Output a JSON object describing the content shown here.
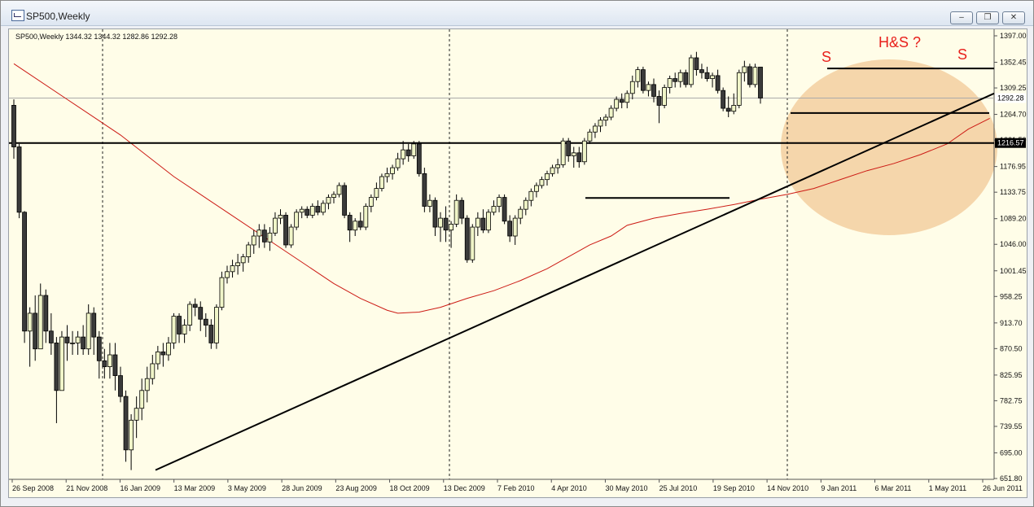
{
  "window": {
    "title": "SP500,Weekly",
    "buttons": [
      "minimize",
      "restore",
      "close"
    ]
  },
  "chart_data": {
    "type": "candlestick",
    "symbol_info": "SP500,Weekly   1344.32 1344.32 1282.86 1292.28",
    "y_ticks": [
      "1397.00",
      "1352.45",
      "1309.25",
      "1264.70",
      "1221.50",
      "1176.95",
      "1133.75",
      "1089.20",
      "1046.00",
      "1001.45",
      "958.25",
      "913.70",
      "870.50",
      "825.95",
      "782.75",
      "739.55",
      "695.00",
      "651.80"
    ],
    "x_ticks": [
      "26 Sep 2008",
      "21 Nov 2008",
      "16 Jan 2009",
      "13 Mar 2009",
      "3 May 2009",
      "28 Jun 2009",
      "23 Aug 2009",
      "18 Oct 2009",
      "13 Dec 2009",
      "7 Feb 2010",
      "4 Apr 2010",
      "30 May 2010",
      "25 Jul 2010",
      "19 Sep 2010",
      "14 Nov 2010",
      "9 Jan 2011",
      "6 Mar 2011",
      "1 May 2011",
      "26 Jun 2011"
    ],
    "ylim": [
      651.8,
      1397.0
    ],
    "price_badges": [
      {
        "text": "1292.28",
        "value": 1292.28
      },
      {
        "text": "1216.57",
        "value": 1216.57
      }
    ],
    "annotations": [
      {
        "text": "S",
        "color": "#e8201c"
      },
      {
        "text": "H&S ?",
        "color": "#e8201c"
      },
      {
        "text": "S",
        "color": "#e8201c"
      }
    ],
    "moving_average": [
      [
        0,
        1350
      ],
      [
        10,
        1290
      ],
      [
        20,
        1230
      ],
      [
        30,
        1160
      ],
      [
        40,
        1100
      ],
      [
        50,
        1040
      ],
      [
        55,
        1010
      ],
      [
        60,
        980
      ],
      [
        65,
        955
      ],
      [
        70,
        935
      ],
      [
        72,
        930
      ],
      [
        76,
        932
      ],
      [
        80,
        940
      ],
      [
        85,
        955
      ],
      [
        90,
        968
      ],
      [
        95,
        985
      ],
      [
        100,
        1005
      ],
      [
        104,
        1025
      ],
      [
        108,
        1045
      ],
      [
        112,
        1060
      ],
      [
        115,
        1078
      ],
      [
        120,
        1090
      ],
      [
        125,
        1098
      ],
      [
        130,
        1105
      ],
      [
        135,
        1113
      ],
      [
        140,
        1122
      ],
      [
        145,
        1130
      ],
      [
        150,
        1140
      ],
      [
        155,
        1155
      ],
      [
        160,
        1170
      ],
      [
        165,
        1182
      ],
      [
        170,
        1197
      ],
      [
        175,
        1215
      ],
      [
        179,
        1240
      ],
      [
        183,
        1258
      ]
    ],
    "candles": [
      {
        "o": 1280,
        "h": 1290,
        "l": 1190,
        "c": 1210
      },
      {
        "o": 1210,
        "h": 1215,
        "l": 1090,
        "c": 1100
      },
      {
        "o": 1100,
        "h": 1102,
        "l": 880,
        "c": 900
      },
      {
        "o": 900,
        "h": 940,
        "l": 840,
        "c": 930
      },
      {
        "o": 930,
        "h": 960,
        "l": 850,
        "c": 870
      },
      {
        "o": 870,
        "h": 980,
        "l": 870,
        "c": 960
      },
      {
        "o": 960,
        "h": 970,
        "l": 880,
        "c": 900
      },
      {
        "o": 900,
        "h": 930,
        "l": 860,
        "c": 880
      },
      {
        "o": 880,
        "h": 890,
        "l": 745,
        "c": 800
      },
      {
        "o": 800,
        "h": 900,
        "l": 800,
        "c": 890
      },
      {
        "o": 890,
        "h": 910,
        "l": 850,
        "c": 880
      },
      {
        "o": 880,
        "h": 900,
        "l": 860,
        "c": 880
      },
      {
        "o": 880,
        "h": 900,
        "l": 860,
        "c": 890
      },
      {
        "o": 890,
        "h": 910,
        "l": 860,
        "c": 870
      },
      {
        "o": 870,
        "h": 945,
        "l": 860,
        "c": 930
      },
      {
        "o": 930,
        "h": 940,
        "l": 860,
        "c": 890
      },
      {
        "o": 890,
        "h": 900,
        "l": 820,
        "c": 850
      },
      {
        "o": 850,
        "h": 870,
        "l": 820,
        "c": 840
      },
      {
        "o": 840,
        "h": 880,
        "l": 820,
        "c": 860
      },
      {
        "o": 860,
        "h": 880,
        "l": 800,
        "c": 825
      },
      {
        "o": 825,
        "h": 840,
        "l": 780,
        "c": 790
      },
      {
        "o": 790,
        "h": 800,
        "l": 680,
        "c": 700
      },
      {
        "o": 700,
        "h": 760,
        "l": 666,
        "c": 750
      },
      {
        "o": 750,
        "h": 790,
        "l": 720,
        "c": 770
      },
      {
        "o": 770,
        "h": 820,
        "l": 750,
        "c": 800
      },
      {
        "o": 800,
        "h": 840,
        "l": 780,
        "c": 820
      },
      {
        "o": 820,
        "h": 860,
        "l": 810,
        "c": 845
      },
      {
        "o": 845,
        "h": 875,
        "l": 835,
        "c": 865
      },
      {
        "o": 865,
        "h": 880,
        "l": 840,
        "c": 860
      },
      {
        "o": 860,
        "h": 890,
        "l": 850,
        "c": 880
      },
      {
        "o": 880,
        "h": 930,
        "l": 870,
        "c": 925
      },
      {
        "o": 925,
        "h": 930,
        "l": 880,
        "c": 895
      },
      {
        "o": 895,
        "h": 920,
        "l": 880,
        "c": 910
      },
      {
        "o": 910,
        "h": 950,
        "l": 900,
        "c": 945
      },
      {
        "o": 945,
        "h": 955,
        "l": 925,
        "c": 940
      },
      {
        "o": 940,
        "h": 950,
        "l": 900,
        "c": 920
      },
      {
        "o": 920,
        "h": 930,
        "l": 890,
        "c": 910
      },
      {
        "o": 910,
        "h": 920,
        "l": 870,
        "c": 880
      },
      {
        "o": 880,
        "h": 945,
        "l": 870,
        "c": 940
      },
      {
        "o": 940,
        "h": 1000,
        "l": 935,
        "c": 990
      },
      {
        "o": 990,
        "h": 1010,
        "l": 980,
        "c": 1000
      },
      {
        "o": 1000,
        "h": 1020,
        "l": 990,
        "c": 1010
      },
      {
        "o": 1010,
        "h": 1030,
        "l": 995,
        "c": 1015
      },
      {
        "o": 1015,
        "h": 1030,
        "l": 1000,
        "c": 1025
      },
      {
        "o": 1025,
        "h": 1050,
        "l": 1015,
        "c": 1045
      },
      {
        "o": 1045,
        "h": 1070,
        "l": 1030,
        "c": 1060
      },
      {
        "o": 1060,
        "h": 1080,
        "l": 1040,
        "c": 1070
      },
      {
        "o": 1070,
        "h": 1080,
        "l": 1040,
        "c": 1050
      },
      {
        "o": 1050,
        "h": 1075,
        "l": 1035,
        "c": 1065
      },
      {
        "o": 1065,
        "h": 1100,
        "l": 1060,
        "c": 1090
      },
      {
        "o": 1090,
        "h": 1105,
        "l": 1080,
        "c": 1095
      },
      {
        "o": 1095,
        "h": 1100,
        "l": 1040,
        "c": 1045
      },
      {
        "o": 1045,
        "h": 1080,
        "l": 1040,
        "c": 1075
      },
      {
        "o": 1075,
        "h": 1105,
        "l": 1070,
        "c": 1100
      },
      {
        "o": 1100,
        "h": 1110,
        "l": 1090,
        "c": 1105
      },
      {
        "o": 1105,
        "h": 1110,
        "l": 1090,
        "c": 1095
      },
      {
        "o": 1095,
        "h": 1115,
        "l": 1090,
        "c": 1110
      },
      {
        "o": 1110,
        "h": 1120,
        "l": 1095,
        "c": 1100
      },
      {
        "o": 1100,
        "h": 1120,
        "l": 1095,
        "c": 1115
      },
      {
        "o": 1115,
        "h": 1130,
        "l": 1105,
        "c": 1125
      },
      {
        "o": 1125,
        "h": 1135,
        "l": 1115,
        "c": 1130
      },
      {
        "o": 1130,
        "h": 1150,
        "l": 1125,
        "c": 1145
      },
      {
        "o": 1145,
        "h": 1150,
        "l": 1090,
        "c": 1095
      },
      {
        "o": 1095,
        "h": 1100,
        "l": 1050,
        "c": 1070
      },
      {
        "o": 1070,
        "h": 1090,
        "l": 1060,
        "c": 1085
      },
      {
        "o": 1085,
        "h": 1100,
        "l": 1070,
        "c": 1075
      },
      {
        "o": 1075,
        "h": 1115,
        "l": 1070,
        "c": 1110
      },
      {
        "o": 1110,
        "h": 1130,
        "l": 1100,
        "c": 1125
      },
      {
        "o": 1125,
        "h": 1150,
        "l": 1120,
        "c": 1140
      },
      {
        "o": 1140,
        "h": 1165,
        "l": 1135,
        "c": 1160
      },
      {
        "o": 1160,
        "h": 1175,
        "l": 1150,
        "c": 1165
      },
      {
        "o": 1165,
        "h": 1180,
        "l": 1155,
        "c": 1175
      },
      {
        "o": 1175,
        "h": 1200,
        "l": 1170,
        "c": 1190
      },
      {
        "o": 1190,
        "h": 1220,
        "l": 1180,
        "c": 1205
      },
      {
        "o": 1205,
        "h": 1215,
        "l": 1185,
        "c": 1195
      },
      {
        "o": 1195,
        "h": 1220,
        "l": 1190,
        "c": 1215
      },
      {
        "o": 1215,
        "h": 1220,
        "l": 1160,
        "c": 1165
      },
      {
        "o": 1165,
        "h": 1175,
        "l": 1100,
        "c": 1110
      },
      {
        "o": 1110,
        "h": 1130,
        "l": 1100,
        "c": 1120
      },
      {
        "o": 1120,
        "h": 1125,
        "l": 1060,
        "c": 1075
      },
      {
        "o": 1075,
        "h": 1100,
        "l": 1050,
        "c": 1090
      },
      {
        "o": 1090,
        "h": 1110,
        "l": 1050,
        "c": 1070
      },
      {
        "o": 1070,
        "h": 1085,
        "l": 1040,
        "c": 1080
      },
      {
        "o": 1080,
        "h": 1130,
        "l": 1075,
        "c": 1120
      },
      {
        "o": 1120,
        "h": 1125,
        "l": 1080,
        "c": 1090
      },
      {
        "o": 1090,
        "h": 1095,
        "l": 1015,
        "c": 1020
      },
      {
        "o": 1020,
        "h": 1080,
        "l": 1015,
        "c": 1075
      },
      {
        "o": 1075,
        "h": 1100,
        "l": 1060,
        "c": 1090
      },
      {
        "o": 1090,
        "h": 1105,
        "l": 1065,
        "c": 1070
      },
      {
        "o": 1070,
        "h": 1105,
        "l": 1065,
        "c": 1100
      },
      {
        "o": 1100,
        "h": 1120,
        "l": 1095,
        "c": 1110
      },
      {
        "o": 1110,
        "h": 1130,
        "l": 1100,
        "c": 1125
      },
      {
        "o": 1125,
        "h": 1130,
        "l": 1080,
        "c": 1085
      },
      {
        "o": 1085,
        "h": 1095,
        "l": 1050,
        "c": 1060
      },
      {
        "o": 1060,
        "h": 1095,
        "l": 1045,
        "c": 1090
      },
      {
        "o": 1090,
        "h": 1110,
        "l": 1080,
        "c": 1105
      },
      {
        "o": 1105,
        "h": 1125,
        "l": 1095,
        "c": 1120
      },
      {
        "o": 1120,
        "h": 1140,
        "l": 1110,
        "c": 1135
      },
      {
        "o": 1135,
        "h": 1150,
        "l": 1125,
        "c": 1145
      },
      {
        "o": 1145,
        "h": 1160,
        "l": 1140,
        "c": 1155
      },
      {
        "o": 1155,
        "h": 1170,
        "l": 1145,
        "c": 1165
      },
      {
        "o": 1165,
        "h": 1180,
        "l": 1160,
        "c": 1175
      },
      {
        "o": 1175,
        "h": 1190,
        "l": 1165,
        "c": 1180
      },
      {
        "o": 1180,
        "h": 1225,
        "l": 1175,
        "c": 1220
      },
      {
        "o": 1220,
        "h": 1225,
        "l": 1185,
        "c": 1195
      },
      {
        "o": 1195,
        "h": 1210,
        "l": 1175,
        "c": 1200
      },
      {
        "o": 1200,
        "h": 1210,
        "l": 1175,
        "c": 1185
      },
      {
        "o": 1185,
        "h": 1225,
        "l": 1180,
        "c": 1220
      },
      {
        "o": 1220,
        "h": 1240,
        "l": 1215,
        "c": 1235
      },
      {
        "o": 1235,
        "h": 1250,
        "l": 1225,
        "c": 1245
      },
      {
        "o": 1245,
        "h": 1260,
        "l": 1235,
        "c": 1255
      },
      {
        "o": 1255,
        "h": 1265,
        "l": 1245,
        "c": 1260
      },
      {
        "o": 1260,
        "h": 1280,
        "l": 1255,
        "c": 1275
      },
      {
        "o": 1275,
        "h": 1295,
        "l": 1270,
        "c": 1290
      },
      {
        "o": 1290,
        "h": 1300,
        "l": 1275,
        "c": 1285
      },
      {
        "o": 1285,
        "h": 1305,
        "l": 1275,
        "c": 1300
      },
      {
        "o": 1300,
        "h": 1330,
        "l": 1290,
        "c": 1320
      },
      {
        "o": 1320,
        "h": 1345,
        "l": 1310,
        "c": 1340
      },
      {
        "o": 1340,
        "h": 1345,
        "l": 1300,
        "c": 1305
      },
      {
        "o": 1305,
        "h": 1320,
        "l": 1295,
        "c": 1315
      },
      {
        "o": 1315,
        "h": 1325,
        "l": 1285,
        "c": 1295
      },
      {
        "o": 1295,
        "h": 1305,
        "l": 1250,
        "c": 1280
      },
      {
        "o": 1280,
        "h": 1315,
        "l": 1275,
        "c": 1310
      },
      {
        "o": 1310,
        "h": 1330,
        "l": 1300,
        "c": 1325
      },
      {
        "o": 1325,
        "h": 1335,
        "l": 1310,
        "c": 1320
      },
      {
        "o": 1320,
        "h": 1340,
        "l": 1310,
        "c": 1335
      },
      {
        "o": 1335,
        "h": 1340,
        "l": 1310,
        "c": 1315
      },
      {
        "o": 1315,
        "h": 1365,
        "l": 1310,
        "c": 1360
      },
      {
        "o": 1360,
        "h": 1370,
        "l": 1330,
        "c": 1340
      },
      {
        "o": 1340,
        "h": 1350,
        "l": 1325,
        "c": 1335
      },
      {
        "o": 1335,
        "h": 1345,
        "l": 1320,
        "c": 1325
      },
      {
        "o": 1325,
        "h": 1335,
        "l": 1310,
        "c": 1330
      },
      {
        "o": 1330,
        "h": 1340,
        "l": 1300,
        "c": 1305
      },
      {
        "o": 1305,
        "h": 1310,
        "l": 1270,
        "c": 1275
      },
      {
        "o": 1275,
        "h": 1295,
        "l": 1260,
        "c": 1270
      },
      {
        "o": 1270,
        "h": 1300,
        "l": 1265,
        "c": 1280
      },
      {
        "o": 1280,
        "h": 1340,
        "l": 1275,
        "c": 1335
      },
      {
        "o": 1335,
        "h": 1355,
        "l": 1320,
        "c": 1345
      },
      {
        "o": 1345,
        "h": 1350,
        "l": 1310,
        "c": 1315
      },
      {
        "o": 1315,
        "h": 1350,
        "l": 1310,
        "c": 1344
      },
      {
        "o": 1344.32,
        "h": 1344.32,
        "l": 1282.86,
        "c": 1292.28
      }
    ]
  }
}
